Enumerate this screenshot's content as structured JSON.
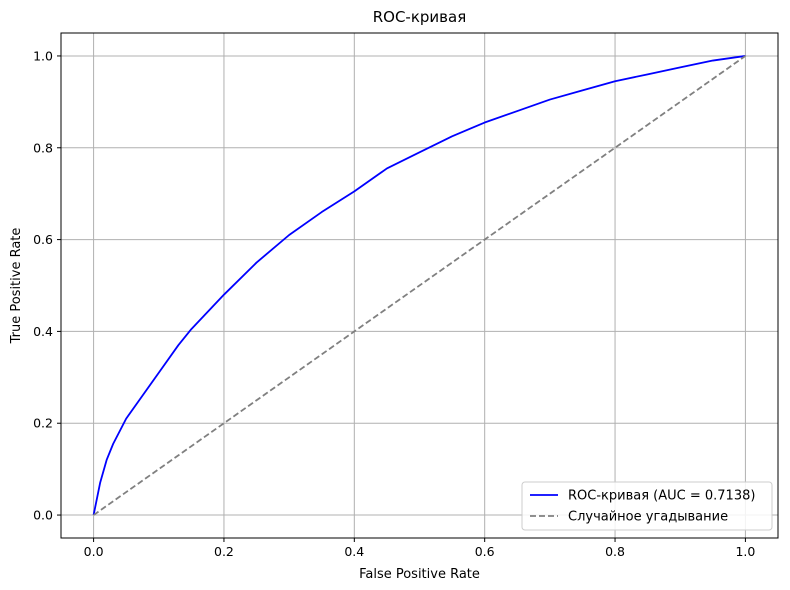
{
  "chart_data": {
    "type": "line",
    "title": "ROC-кривая",
    "xlabel": "False Positive Rate",
    "ylabel": "True Positive Rate",
    "xlim": [
      -0.05,
      1.05
    ],
    "ylim": [
      -0.05,
      1.05
    ],
    "xticks": [
      0.0,
      0.2,
      0.4,
      0.6,
      0.8,
      1.0
    ],
    "xtick_labels": [
      "0.0",
      "0.2",
      "0.4",
      "0.6",
      "0.8",
      "1.0"
    ],
    "yticks": [
      0.0,
      0.2,
      0.4,
      0.6,
      0.8,
      1.0
    ],
    "ytick_labels": [
      "0.0",
      "0.2",
      "0.4",
      "0.6",
      "0.8",
      "1.0"
    ],
    "grid": true,
    "legend_position": "lower-right",
    "series": [
      {
        "name": "ROC-кривая (AUC = 0.7138)",
        "color": "#0000ff",
        "style": "solid",
        "x": [
          0.0,
          0.01,
          0.02,
          0.03,
          0.05,
          0.07,
          0.1,
          0.13,
          0.15,
          0.2,
          0.25,
          0.3,
          0.35,
          0.4,
          0.45,
          0.5,
          0.55,
          0.6,
          0.65,
          0.7,
          0.75,
          0.8,
          0.85,
          0.9,
          0.95,
          1.0
        ],
        "y": [
          0.0,
          0.07,
          0.12,
          0.155,
          0.21,
          0.25,
          0.31,
          0.37,
          0.405,
          0.48,
          0.55,
          0.61,
          0.66,
          0.705,
          0.755,
          0.79,
          0.825,
          0.855,
          0.88,
          0.905,
          0.925,
          0.945,
          0.96,
          0.975,
          0.99,
          1.0
        ]
      },
      {
        "name": "Случайное угадывание",
        "color": "#808080",
        "style": "dashed",
        "x": [
          0.0,
          1.0
        ],
        "y": [
          0.0,
          1.0
        ]
      }
    ]
  }
}
